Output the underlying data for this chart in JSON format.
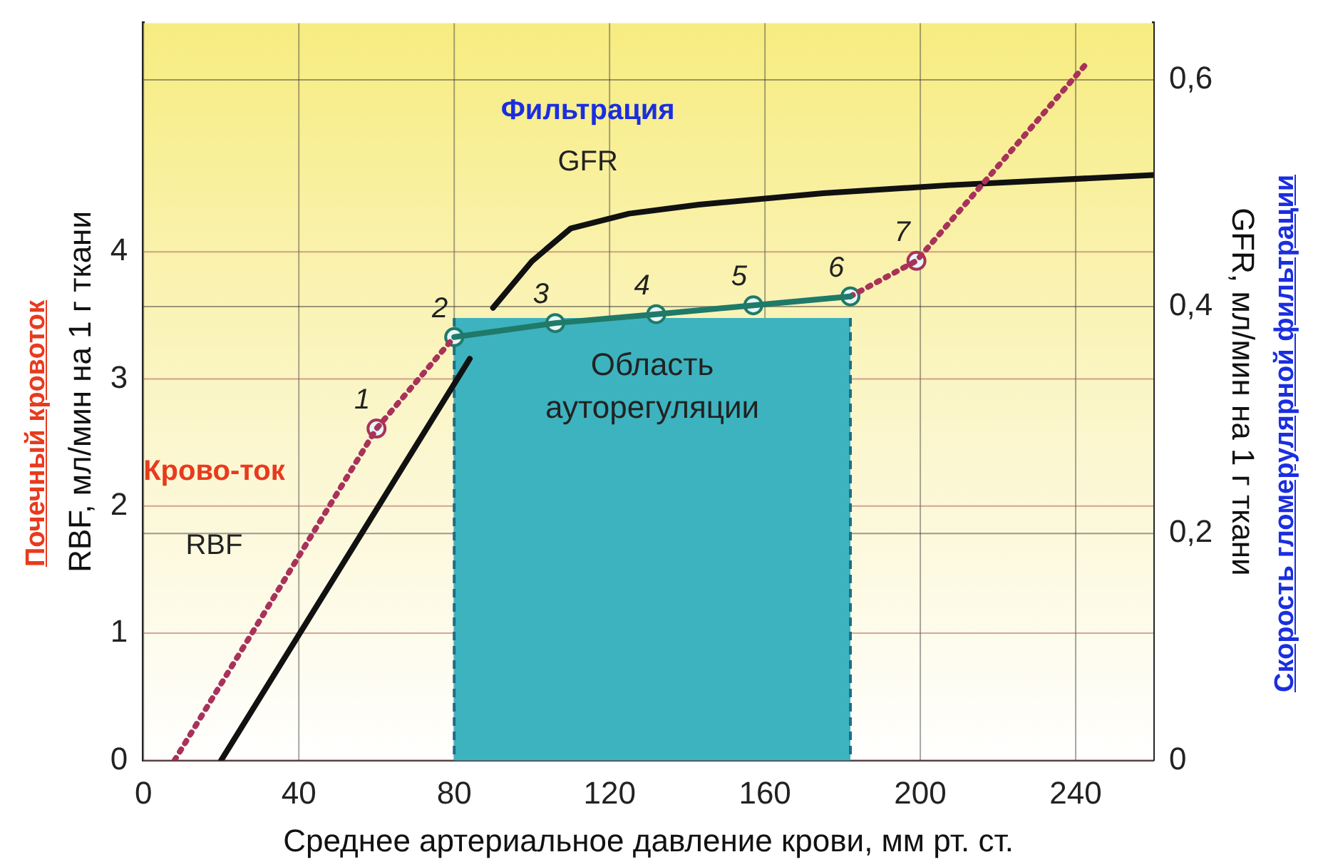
{
  "chart_data": {
    "type": "line",
    "xlabel": "Среднее артериальное давление крови, мм рт. ст.",
    "ylabel": "RBF, мл/мин на 1 г ткани",
    "y2label": "GFR, мл/мин на 1 г ткани",
    "annotations": [
      "Почечный кровоток",
      "Скорость гломерулярной фильтрации",
      "Фильтрация",
      "GFR",
      "Крово-ток",
      "RBF",
      {
        "text": "1",
        "x": 60,
        "y": 2.61
      },
      {
        "text": "2",
        "x": 80,
        "y": 3.33
      },
      {
        "text": "3",
        "x": 106,
        "y": 3.44
      },
      {
        "text": "4",
        "x": 132,
        "y": 3.51
      },
      {
        "text": "5",
        "x": 157,
        "y": 3.58
      },
      {
        "text": "6",
        "x": 182,
        "y": 3.65
      },
      {
        "text": "7",
        "x": 199,
        "y": 3.93
      }
    ],
    "xlim": [
      0,
      260
    ],
    "xticks": [
      0,
      40,
      80,
      120,
      160,
      200,
      240
    ],
    "ylim": [
      0,
      5.8
    ],
    "yticks": [
      0,
      1,
      2,
      3,
      4
    ],
    "y2lim": [
      0,
      0.65
    ],
    "y2ticks": [
      0,
      {
        "value": 0.2,
        "label": "0,2"
      },
      {
        "value": 0.4,
        "label": "0,4"
      },
      {
        "value": 0.6,
        "label": "0,6"
      }
    ],
    "grid": true,
    "bands": [
      {
        "axis": "x",
        "from": 80,
        "to": 182,
        "label": "Область ауторегуляции",
        "color": "#3db3bf"
      }
    ],
    "series": [
      {
        "color": "#a8325a",
        "line_style": "dotted",
        "marker": "none",
        "x": [
          8,
          60,
          80
        ],
        "values": [
          0,
          2.61,
          3.33
        ]
      },
      {
        "color": "#1f7a6a",
        "line_style": "solid",
        "marker": "none",
        "x": [
          80,
          106,
          132,
          157,
          182
        ],
        "values": [
          3.33,
          3.44,
          3.51,
          3.58,
          3.65
        ]
      },
      {
        "color": "#a8325a",
        "line_style": "dotted",
        "marker": "none",
        "x": [
          182,
          199,
          243
        ],
        "values": [
          3.65,
          3.93,
          5.49
        ]
      },
      {
        "type": "scatter",
        "marker": "circle",
        "colors": [
          "#a8325a",
          "#1f7a6a",
          "#1f7a6a",
          "#1f7a6a",
          "#1f7a6a",
          "#1f7a6a",
          "#a8325a"
        ],
        "x": [
          60,
          80,
          106,
          132,
          157,
          182,
          199
        ],
        "values": [
          2.61,
          3.33,
          3.44,
          3.51,
          3.58,
          3.65,
          3.93
        ]
      },
      {
        "color": "#111111",
        "line_style": "solid",
        "axis": "y2",
        "marker": "none",
        "x": [
          20,
          84,
          87,
          90,
          100,
          110,
          125,
          143,
          175,
          207,
          260
        ],
        "values": [
          0,
          0.354,
          null,
          0.399,
          0.44,
          0.469,
          0.482,
          0.49,
          0.5,
          0.507,
          0.516
        ]
      }
    ]
  }
}
